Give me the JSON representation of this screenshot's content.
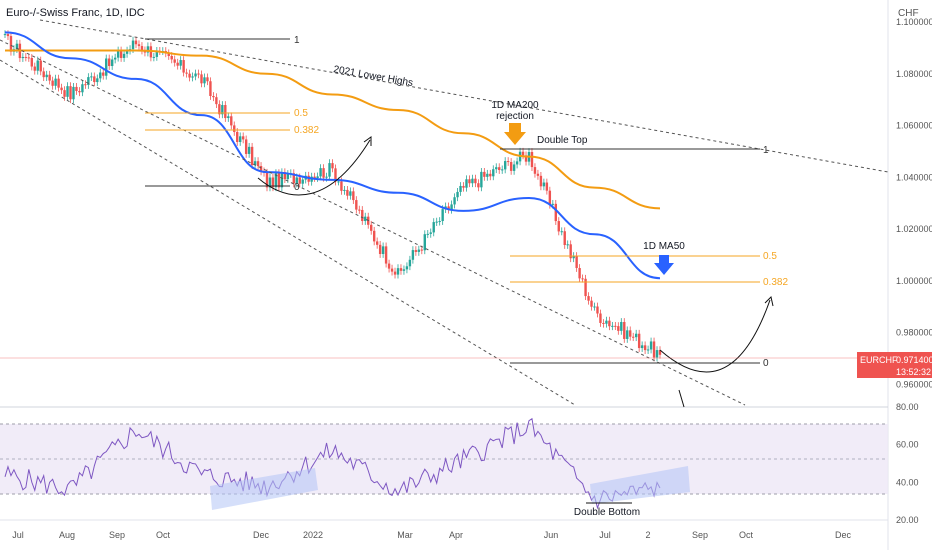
{
  "title": "Euro-/-Swiss Franc, 1D, IDC",
  "currency_label": "CHF",
  "symbol_badge": {
    "symbol": "EURCHF",
    "price": "0.971400",
    "countdown": "13:52:32",
    "color": "#ef5350"
  },
  "colors": {
    "up": "#26a69a",
    "down": "#ef5350",
    "ma200": "#f39c12",
    "ma50": "#2962ff",
    "fib": "#f5a623",
    "rsi_line": "#7e57c2",
    "rsi_band": "#d1c4e9",
    "text": "#131722",
    "axis_text": "#555555"
  },
  "price_axis": {
    "min": 0.952,
    "max": 1.1,
    "ticks": [
      "0.960000",
      "0.980000",
      "1.000000",
      "1.020000",
      "1.040000",
      "1.060000",
      "1.080000",
      "1.100000"
    ]
  },
  "time_axis": [
    "Jul",
    "Aug",
    "Sep",
    "Oct",
    "Dec",
    "2022",
    "Mar",
    "Apr",
    "Jun",
    "Jul",
    "2",
    "Sep",
    "Oct",
    "Dec"
  ],
  "annotations": {
    "lower_highs": "2021 Lower Highs",
    "ma200_rejection_line1": "1D MA200",
    "ma200_rejection_line2": "rejection",
    "double_top": "Double Top",
    "ma50": "1D MA50",
    "double_bottom": "Double Bottom"
  },
  "fib_labels": {
    "left_one": "1",
    "left_half": "0.5",
    "left_382": "0.382",
    "left_zero": "0",
    "right_one": "1",
    "right_half": "0.5",
    "right_382": "0.382",
    "right_zero": "0"
  },
  "rsi_axis": {
    "ticks": [
      "20.00",
      "40.00",
      "60.00",
      "80.00"
    ]
  },
  "chart_data": {
    "type": "line",
    "title": "Euro-/-Swiss Franc, 1D, IDC",
    "ylabel": "CHF",
    "ylim": [
      0.952,
      1.1
    ],
    "series": [
      {
        "name": "EURCHF",
        "x": [
          "Jul",
          "Aug",
          "Sep",
          "Oct",
          "Dec",
          "2022",
          "Mar",
          "Apr",
          "Jun",
          "Jul",
          "2"
        ],
        "values": [
          1.093,
          1.072,
          1.092,
          1.078,
          1.038,
          1.043,
          1.002,
          1.036,
          1.049,
          0.988,
          0.9714
        ]
      },
      {
        "name": "1D MA200",
        "x": [
          "Jul",
          "Aug",
          "Sep",
          "Oct",
          "Dec",
          "2022",
          "Mar",
          "Apr",
          "Jun",
          "Jul",
          "2"
        ],
        "values": [
          1.089,
          1.089,
          1.089,
          1.087,
          1.08,
          1.072,
          1.066,
          1.057,
          1.048,
          1.036,
          1.028
        ]
      },
      {
        "name": "1D MA50",
        "x": [
          "Jul",
          "Aug",
          "Sep",
          "Oct",
          "Dec",
          "2022",
          "Mar",
          "Apr",
          "Jun",
          "Jul",
          "2"
        ],
        "values": [
          1.096,
          1.086,
          1.078,
          1.064,
          1.042,
          1.039,
          1.034,
          1.027,
          1.032,
          1.018,
          1.001
        ]
      }
    ],
    "rsi": {
      "ylim": [
        20,
        80
      ],
      "x": [
        "Jul",
        "Aug",
        "Sep",
        "Oct",
        "Dec",
        "2022",
        "Mar",
        "Apr",
        "Jun",
        "Jul",
        "2"
      ],
      "values": [
        44,
        36,
        68,
        44,
        38,
        57,
        35,
        52,
        70,
        31,
        37
      ]
    }
  }
}
